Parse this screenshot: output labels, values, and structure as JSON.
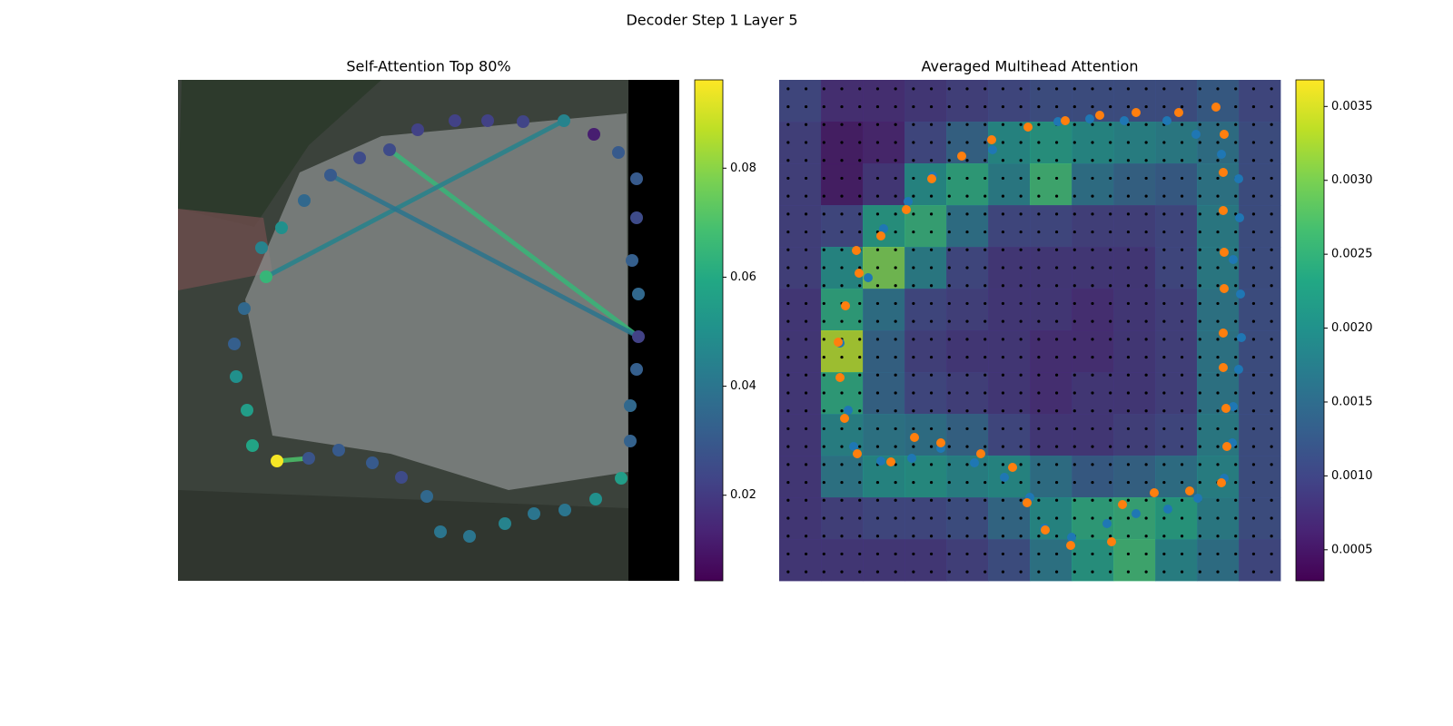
{
  "title": "Decoder Step 1 Layer 5",
  "chart_data": [
    {
      "type": "scatter",
      "title": "Self-Attention Top 80%",
      "colormap": "viridis",
      "xlim": [
        0,
        552
      ],
      "ylim": [
        552,
        0
      ],
      "clim": [
        0.0043,
        0.0962
      ],
      "cticks": [
        0.02,
        0.04,
        0.06,
        0.08
      ],
      "x": [
        233,
        264,
        305,
        341,
        380,
        425,
        458,
        485,
        505,
        505,
        500,
        507,
        507,
        505,
        498,
        498,
        488,
        460,
        426,
        392,
        360,
        321,
        289,
        274,
        246,
        214,
        177,
        144,
        109,
        82,
        76,
        64,
        62,
        73,
        97,
        92,
        114,
        139,
        168,
        200
      ],
      "y": [
        77,
        55,
        45,
        45,
        46,
        45,
        60,
        80,
        109,
        152,
        199,
        236,
        283,
        319,
        359,
        398,
        439,
        462,
        474,
        478,
        489,
        503,
        498,
        459,
        438,
        422,
        408,
        417,
        420,
        403,
        364,
        327,
        291,
        252,
        217,
        185,
        163,
        133,
        105,
        86
      ],
      "values": [
        0.025,
        0.022,
        0.022,
        0.022,
        0.023,
        0.045,
        0.012,
        0.03,
        0.03,
        0.025,
        0.032,
        0.035,
        0.022,
        0.032,
        0.035,
        0.033,
        0.055,
        0.05,
        0.04,
        0.04,
        0.045,
        0.04,
        0.04,
        0.035,
        0.025,
        0.03,
        0.03,
        0.028,
        0.095,
        0.058,
        0.055,
        0.05,
        0.032,
        0.035,
        0.065,
        0.045,
        0.05,
        0.035,
        0.03,
        0.025
      ],
      "links": [
        {
          "from": 0,
          "to": 12,
          "value": 0.065
        },
        {
          "from": 34,
          "to": 5,
          "value": 0.045
        },
        {
          "from": 38,
          "to": 12,
          "value": 0.04
        },
        {
          "from": 28,
          "to": 27,
          "value": 0.07
        }
      ]
    },
    {
      "type": "heatmap",
      "title": "Averaged Multihead Attention",
      "colormap": "viridis",
      "xlim": [
        0,
        552
      ],
      "ylim": [
        552,
        0
      ],
      "clim": [
        0.00029,
        0.00368
      ],
      "cticks": [
        0.0005,
        {
          "value": 0.001,
          "label": "0.0010"
        },
        0.0015,
        {
          "value": 0.002,
          "label": "0.0020"
        },
        0.0025,
        {
          "value": 0.003,
          "label": "0.0030"
        },
        0.0035
      ],
      "z": [
        [
          0.001,
          0.0007,
          0.0007,
          0.0008,
          0.0009,
          0.001,
          0.0011,
          0.0011,
          0.0011,
          0.0011,
          0.0013,
          0.001
        ],
        [
          0.0009,
          0.0005,
          0.0006,
          0.001,
          0.0014,
          0.002,
          0.0022,
          0.002,
          0.0019,
          0.0018,
          0.0016,
          0.0011
        ],
        [
          0.0009,
          0.0005,
          0.0008,
          0.002,
          0.0024,
          0.0018,
          0.0026,
          0.0016,
          0.0014,
          0.0013,
          0.0017,
          0.0011
        ],
        [
          0.0009,
          0.001,
          0.0022,
          0.0025,
          0.0016,
          0.001,
          0.001,
          0.0009,
          0.0009,
          0.001,
          0.0018,
          0.0011
        ],
        [
          0.0009,
          0.002,
          0.003,
          0.0018,
          0.001,
          0.0008,
          0.0008,
          0.0008,
          0.0008,
          0.001,
          0.0018,
          0.0011
        ],
        [
          0.0008,
          0.0024,
          0.0016,
          0.001,
          0.0009,
          0.0008,
          0.0008,
          0.0007,
          0.0008,
          0.0009,
          0.0017,
          0.0011
        ],
        [
          0.0008,
          0.0033,
          0.0014,
          0.0009,
          0.0008,
          0.0008,
          0.0007,
          0.0007,
          0.0008,
          0.0009,
          0.0017,
          0.0011
        ],
        [
          0.0008,
          0.0024,
          0.0014,
          0.001,
          0.0009,
          0.0008,
          0.0007,
          0.0008,
          0.0008,
          0.0009,
          0.0017,
          0.0011
        ],
        [
          0.0008,
          0.0019,
          0.0017,
          0.0016,
          0.0014,
          0.001,
          0.0008,
          0.0008,
          0.0009,
          0.001,
          0.0018,
          0.0011
        ],
        [
          0.0008,
          0.0017,
          0.002,
          0.0021,
          0.0019,
          0.002,
          0.0016,
          0.0013,
          0.0014,
          0.0016,
          0.0019,
          0.0011
        ],
        [
          0.0008,
          0.0009,
          0.001,
          0.001,
          0.0011,
          0.0015,
          0.002,
          0.0024,
          0.0025,
          0.0023,
          0.0018,
          0.0011
        ],
        [
          0.0008,
          0.0008,
          0.0008,
          0.0008,
          0.0009,
          0.0011,
          0.0017,
          0.0022,
          0.0026,
          0.0019,
          0.0016,
          0.001
        ]
      ],
      "series": [
        {
          "color": "#1f77b4",
          "x": [
            67,
            76,
            82,
            98,
            115,
            142,
            169,
            235,
            307,
            342,
            380,
            427,
            459,
            487,
            506,
            507,
            500,
            508,
            509,
            506,
            500,
            499,
            490,
            461,
            428,
            393,
            361,
            322,
            292,
            276,
            248,
            215,
            178,
            146,
            112
          ],
          "y": [
            290,
            364,
            404,
            218,
            164,
            134,
            106,
            77,
            46,
            43,
            45,
            45,
            60,
            82,
            109,
            152,
            198,
            236,
            284,
            319,
            360,
            400,
            439,
            461,
            473,
            478,
            489,
            504,
            494,
            460,
            438,
            422,
            406,
            417,
            420
          ]
        },
        {
          "color": "#ff7f0e",
          "x": [
            65,
            67,
            72,
            73,
            86,
            88,
            85,
            112,
            140,
            168,
            201,
            234,
            274,
            315,
            353,
            393,
            440,
            481,
            490,
            489,
            489,
            490,
            490,
            489,
            489,
            492,
            493,
            487,
            452,
            413,
            378,
            366,
            321,
            293,
            273,
            257,
            222,
            178,
            149,
            123
          ],
          "y": [
            289,
            328,
            373,
            249,
            412,
            213,
            188,
            172,
            143,
            109,
            84,
            66,
            52,
            45,
            39,
            36,
            36,
            30,
            60,
            102,
            144,
            190,
            230,
            279,
            317,
            362,
            404,
            444,
            453,
            455,
            468,
            509,
            513,
            496,
            466,
            427,
            412,
            400,
            394,
            421
          ]
        }
      ]
    }
  ]
}
